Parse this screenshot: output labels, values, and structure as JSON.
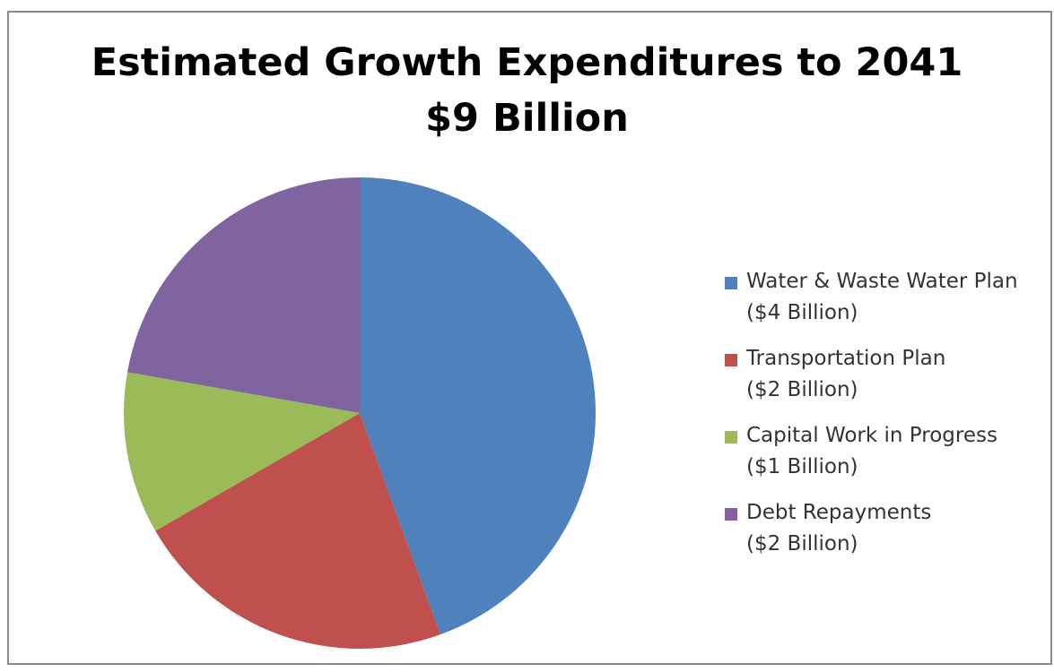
{
  "chart_data": {
    "type": "pie",
    "title": "Estimated Growth Expenditures to 2041",
    "subtitle": "$9 Billion",
    "legend_position": "right",
    "start_angle_deg": 0,
    "direction": "clockwise",
    "slices": [
      {
        "label": "Water & Waste Water Plan",
        "sublabel": "($4 Billion)",
        "value": 4,
        "color": "#4f81bd"
      },
      {
        "label": "Transportation Plan",
        "sublabel": "($2 Billion)",
        "value": 2,
        "color": "#c0504d"
      },
      {
        "label": "Capital Work in Progress",
        "sublabel": "($1 Billion)",
        "value": 1,
        "color": "#9bbb59"
      },
      {
        "label": "Debt Repayments",
        "sublabel": "($2 Billion)",
        "value": 2,
        "color": "#8064a2"
      }
    ]
  }
}
